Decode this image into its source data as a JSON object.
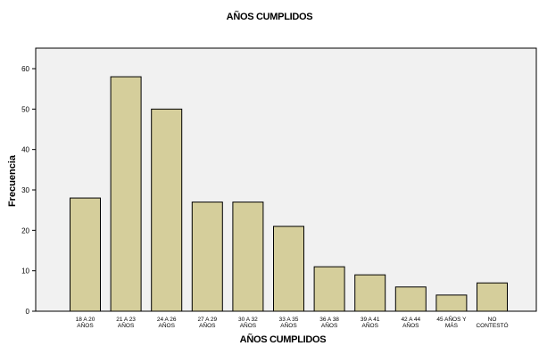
{
  "chart_data": {
    "type": "bar",
    "title": "AÑOS CUMPLIDOS",
    "xlabel": "AÑOS CUMPLIDOS",
    "ylabel": "Frecuencia",
    "ylim": [
      0,
      60
    ],
    "yticks": [
      0,
      10,
      20,
      30,
      40,
      50,
      60
    ],
    "grid": false,
    "categories": [
      [
        "18 A 20",
        "AÑOS"
      ],
      [
        "21 A 23",
        "AÑOS"
      ],
      [
        "24 A 26",
        "AÑOS"
      ],
      [
        "27 A 29",
        "AÑOS"
      ],
      [
        "30 A 32",
        "AÑOS"
      ],
      [
        "33 A 35",
        "AÑOS"
      ],
      [
        "36 A 38",
        "AÑOS"
      ],
      [
        "39 A 41",
        "AÑOS"
      ],
      [
        "42 A 44",
        "AÑOS"
      ],
      [
        "45 AÑOS Y",
        "MÁS"
      ],
      [
        "NO",
        "CONTESTÓ"
      ]
    ],
    "values": [
      28,
      58,
      50,
      27,
      27,
      21,
      11,
      9,
      6,
      4,
      7
    ],
    "bar_color": "#d5ce9b",
    "background_color": "#f1f1f1"
  }
}
